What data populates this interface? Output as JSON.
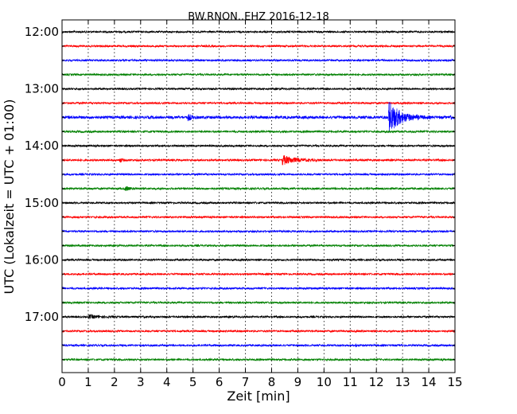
{
  "chart_data": {
    "type": "line",
    "title": "BW.RNON..EHZ 2016-12-18",
    "xlabel": "Zeit  [min]",
    "ylabel": "UTC (Lokalzeit = UTC + 01:00)",
    "xlim": [
      0,
      15
    ],
    "x_ticks": [
      "0",
      "1",
      "2",
      "3",
      "4",
      "5",
      "6",
      "7",
      "8",
      "9",
      "10",
      "11",
      "12",
      "13",
      "14",
      "15"
    ],
    "y_ticks": [
      "12:00",
      "13:00",
      "14:00",
      "15:00",
      "16:00",
      "17:00"
    ],
    "grid": "vertical-dotted",
    "trace_interval_min": 15,
    "colors": [
      "#000000",
      "#ff0000",
      "#0000ff",
      "#008000"
    ],
    "series": [
      {
        "start": "12:00",
        "noise": 1.2,
        "events": []
      },
      {
        "start": "12:15",
        "noise": 1.2,
        "events": []
      },
      {
        "start": "12:30",
        "noise": 1.2,
        "events": []
      },
      {
        "start": "12:45",
        "noise": 1.2,
        "events": []
      },
      {
        "start": "13:00",
        "noise": 1.2,
        "events": []
      },
      {
        "start": "13:15",
        "noise": 1.2,
        "events": []
      },
      {
        "start": "13:30",
        "noise": 1.8,
        "events": [
          {
            "t": 4.8,
            "amp": 4,
            "dur": 0.5
          },
          {
            "t": 12.45,
            "amp": 22,
            "dur": 1.6
          },
          {
            "t": 14.8,
            "amp": 5,
            "dur": 0.2
          }
        ]
      },
      {
        "start": "13:45",
        "noise": 1.3,
        "events": []
      },
      {
        "start": "14:00",
        "noise": 1.2,
        "events": []
      },
      {
        "start": "14:15",
        "noise": 1.3,
        "events": [
          {
            "t": 2.2,
            "amp": 3,
            "dur": 0.3
          },
          {
            "t": 8.4,
            "amp": 6,
            "dur": 1.8
          }
        ]
      },
      {
        "start": "14:30",
        "noise": 1.2,
        "events": []
      },
      {
        "start": "14:45",
        "noise": 1.3,
        "events": [
          {
            "t": 2.4,
            "amp": 3,
            "dur": 0.6
          }
        ]
      },
      {
        "start": "15:00",
        "noise": 1.2,
        "events": []
      },
      {
        "start": "15:15",
        "noise": 1.2,
        "events": []
      },
      {
        "start": "15:30",
        "noise": 1.2,
        "events": []
      },
      {
        "start": "15:45",
        "noise": 1.2,
        "events": []
      },
      {
        "start": "16:00",
        "noise": 1.2,
        "events": []
      },
      {
        "start": "16:15",
        "noise": 1.2,
        "events": []
      },
      {
        "start": "16:30",
        "noise": 1.2,
        "events": []
      },
      {
        "start": "16:45",
        "noise": 1.2,
        "events": []
      },
      {
        "start": "17:00",
        "noise": 1.2,
        "events": [
          {
            "t": 1.0,
            "amp": 2,
            "dur": 1.8
          }
        ]
      },
      {
        "start": "17:15",
        "noise": 1.2,
        "events": []
      },
      {
        "start": "17:30",
        "noise": 1.2,
        "events": [
          {
            "t": 11.2,
            "amp": 2,
            "dur": 0.2
          }
        ]
      },
      {
        "start": "17:45",
        "noise": 1.2,
        "events": []
      }
    ]
  }
}
